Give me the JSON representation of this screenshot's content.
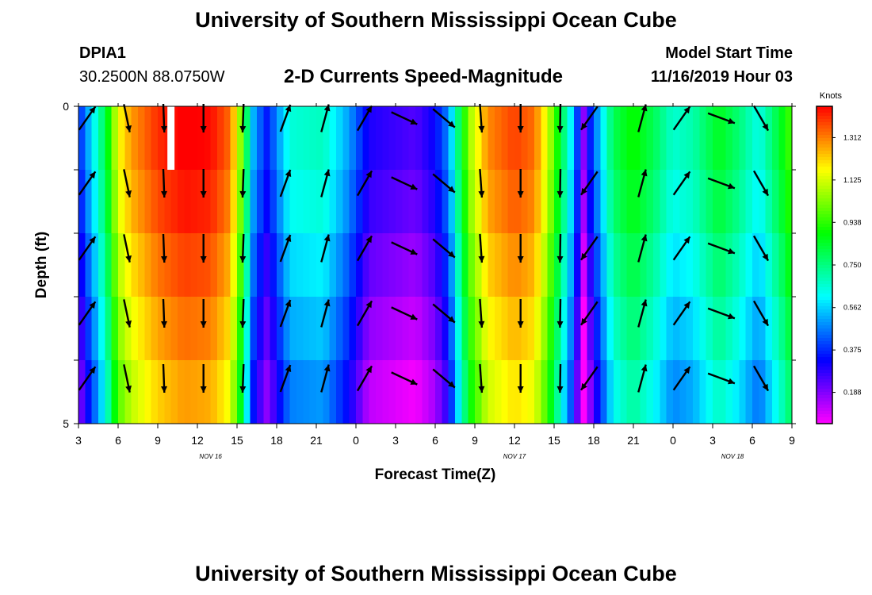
{
  "header": {
    "title": "University of Southern Mississippi Ocean Cube",
    "station_id": "DPIA1",
    "station_coords": "30.2500N 88.0750W",
    "plot_title": "2-D Currents Speed-Magnitude",
    "start_label": "Model Start Time",
    "start_value": "11/16/2019 Hour 03"
  },
  "footer": {
    "title": "University of Southern Mississippi Ocean Cube"
  },
  "chart_data": {
    "type": "heatmap",
    "title": "2-D Currents Speed-Magnitude",
    "xlabel": "Forecast Time(Z)",
    "ylabel": "Depth (ft)",
    "x_tick_labels": [
      "3",
      "6",
      "9",
      "12",
      "15",
      "18",
      "21",
      "0",
      "3",
      "6",
      "9",
      "12",
      "15",
      "18",
      "21",
      "0",
      "3",
      "6",
      "9"
    ],
    "x_range_hours": [
      0,
      54
    ],
    "date_labels": [
      {
        "label": "NOV 16",
        "hour": 10
      },
      {
        "label": "NOV 17",
        "hour": 33
      },
      {
        "label": "NOV 18",
        "hour": 49.5
      }
    ],
    "y_tick_labels": [
      "0",
      "5"
    ],
    "ylim": [
      0,
      5
    ],
    "depth_rows": 5,
    "colorbar": {
      "unit": "Knots",
      "range": [
        0.05,
        1.45
      ],
      "tick_labels": [
        "1.312",
        "1.125",
        "0.938",
        "0.750",
        "0.562",
        "0.375",
        "0.188"
      ],
      "tick_values": [
        1.312,
        1.125,
        0.938,
        0.75,
        0.562,
        0.375,
        0.188
      ]
    },
    "speed_profile_knots": [
      {
        "hour": 0,
        "speed": 0.27
      },
      {
        "hour": 1,
        "speed": 0.5
      },
      {
        "hour": 1.5,
        "speed": 0.6
      },
      {
        "hour": 2.3,
        "speed": 0.82
      },
      {
        "hour": 3,
        "speed": 1.08
      },
      {
        "hour": 4,
        "speed": 1.2
      },
      {
        "hour": 6,
        "speed": 1.32
      },
      {
        "hour": 8,
        "speed": 1.38
      },
      {
        "hour": 10,
        "speed": 1.36
      },
      {
        "hour": 11.5,
        "speed": 1.25
      },
      {
        "hour": 12.3,
        "speed": 0.95
      },
      {
        "hour": 12.7,
        "speed": 0.72
      },
      {
        "hour": 13.3,
        "speed": 0.42
      },
      {
        "hour": 14.3,
        "speed": 0.27
      },
      {
        "hour": 15.3,
        "speed": 0.45
      },
      {
        "hour": 16,
        "speed": 0.57
      },
      {
        "hour": 18.5,
        "speed": 0.6
      },
      {
        "hour": 20.5,
        "speed": 0.42
      },
      {
        "hour": 22,
        "speed": 0.22
      },
      {
        "hour": 25.5,
        "speed": 0.16
      },
      {
        "hour": 27,
        "speed": 0.25
      },
      {
        "hour": 28,
        "speed": 0.4
      },
      {
        "hour": 29,
        "speed": 0.78
      },
      {
        "hour": 29.7,
        "speed": 1.0
      },
      {
        "hour": 31,
        "speed": 1.22
      },
      {
        "hour": 33,
        "speed": 1.3
      },
      {
        "hour": 34.5,
        "speed": 1.25
      },
      {
        "hour": 35.5,
        "speed": 1.05
      },
      {
        "hour": 36.5,
        "speed": 0.75
      },
      {
        "hour": 37.5,
        "speed": 0.45
      },
      {
        "hour": 38.2,
        "speed": 0.08
      },
      {
        "hour": 38.8,
        "speed": 0.3
      },
      {
        "hour": 39.5,
        "speed": 0.48
      },
      {
        "hour": 40.5,
        "speed": 0.72
      },
      {
        "hour": 42,
        "speed": 0.82
      },
      {
        "hour": 43.5,
        "speed": 0.72
      },
      {
        "hour": 45,
        "speed": 0.58
      },
      {
        "hour": 46.5,
        "speed": 0.62
      },
      {
        "hour": 48.5,
        "speed": 0.78
      },
      {
        "hour": 50,
        "speed": 0.68
      },
      {
        "hour": 51.5,
        "speed": 0.55
      },
      {
        "hour": 53,
        "speed": 0.75
      },
      {
        "hour": 54,
        "speed": 0.9
      }
    ],
    "row_offsets_knots": [
      0.08,
      0.05,
      0.0,
      -0.05,
      -0.1
    ],
    "vector_directions_deg": [
      {
        "hour": 0.3,
        "dir": 35
      },
      {
        "hour": 3.3,
        "dir": 168
      },
      {
        "hour": 6.1,
        "dir": 178
      },
      {
        "hour": 9.1,
        "dir": 180
      },
      {
        "hour": 12.1,
        "dir": 182
      },
      {
        "hour": 15.3,
        "dir": 20
      },
      {
        "hour": 18.3,
        "dir": 15
      },
      {
        "hour": 21.3,
        "dir": 30
      },
      {
        "hour": 24.3,
        "dir": 115
      },
      {
        "hour": 27.3,
        "dir": 130
      },
      {
        "hour": 30.1,
        "dir": 176
      },
      {
        "hour": 33.1,
        "dir": 180
      },
      {
        "hour": 36.1,
        "dir": 181
      },
      {
        "hour": 38.3,
        "dir": 215
      },
      {
        "hour": 42.3,
        "dir": 15
      },
      {
        "hour": 45.3,
        "dir": 35
      },
      {
        "hour": 48.3,
        "dir": 110
      },
      {
        "hour": 51.3,
        "dir": 150
      }
    ],
    "missing_data": [
      {
        "hour": 7,
        "depth_row": 0
      }
    ]
  }
}
